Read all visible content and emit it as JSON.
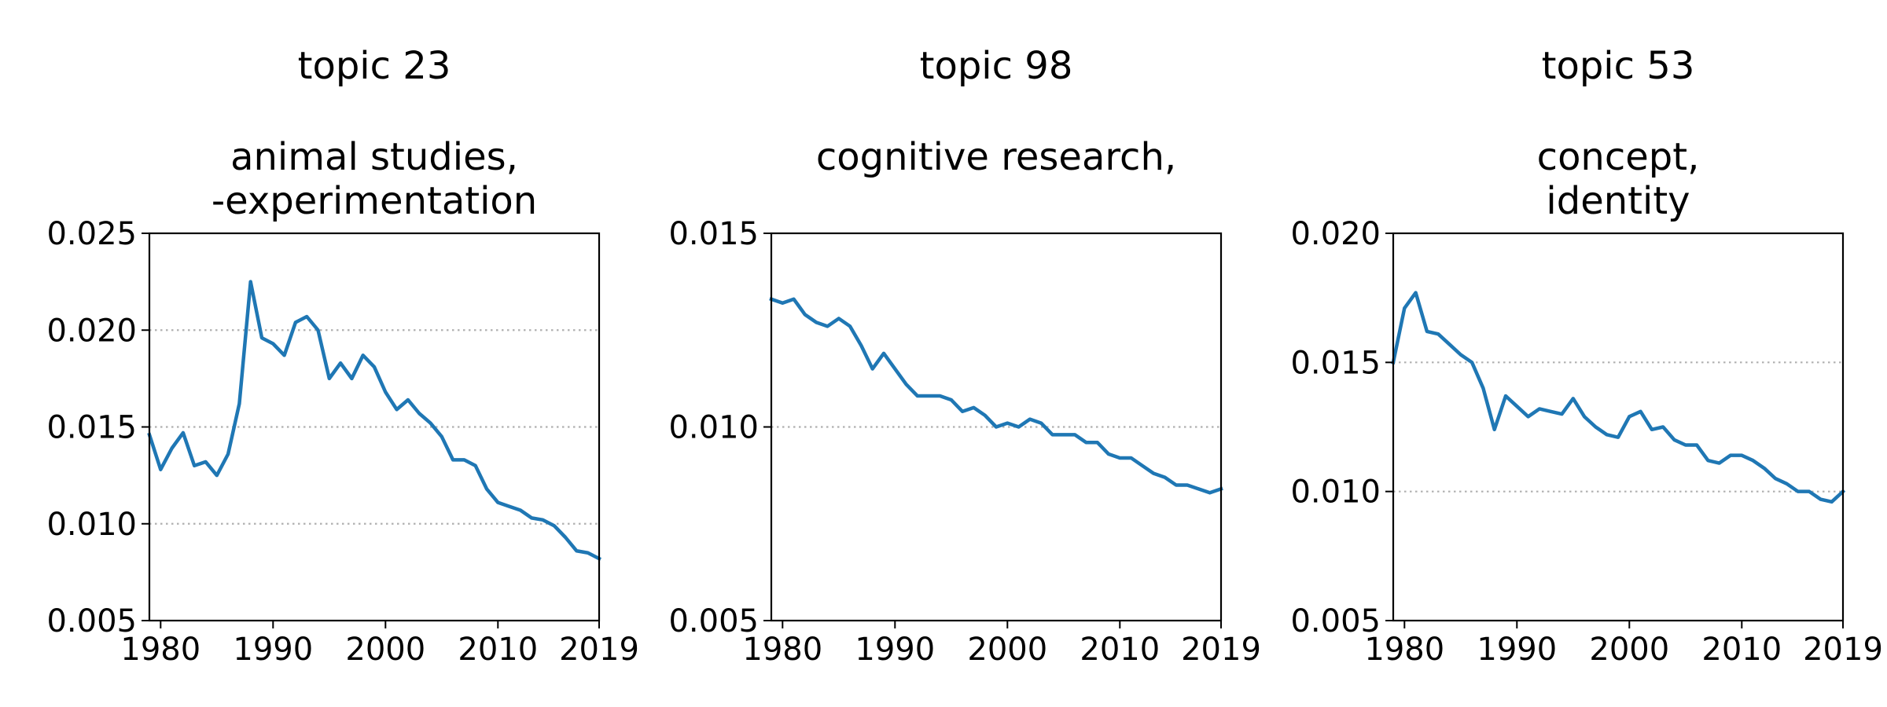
{
  "figure": {
    "line_color": "#1f77b4",
    "grid_color": "#b0b0b0",
    "grid_style": "dotted",
    "grid_axis": "y"
  },
  "chart_data": [
    {
      "type": "line",
      "title": "topic 23",
      "subtitle": "animal studies,\n-experimentation",
      "xlabel": "",
      "ylabel": "",
      "xlim": [
        1979,
        2019
      ],
      "ylim": [
        0.005,
        0.025
      ],
      "xticks": [
        1980,
        1990,
        2000,
        2010,
        2019
      ],
      "yticks": [
        "0.005",
        "0.010",
        "0.015",
        "0.020",
        "0.025"
      ],
      "grid_yvalues": [
        0.01,
        0.015,
        0.02
      ],
      "x": [
        1979,
        1980,
        1981,
        1982,
        1983,
        1984,
        1985,
        1986,
        1987,
        1988,
        1989,
        1990,
        1991,
        1992,
        1993,
        1994,
        1995,
        1996,
        1997,
        1998,
        1999,
        2000,
        2001,
        2002,
        2003,
        2004,
        2005,
        2006,
        2007,
        2008,
        2009,
        2010,
        2011,
        2012,
        2013,
        2014,
        2015,
        2016,
        2017,
        2018,
        2019
      ],
      "series": [
        {
          "values": [
            0.0146,
            0.0128,
            0.0139,
            0.0147,
            0.013,
            0.0132,
            0.0125,
            0.0136,
            0.0162,
            0.0225,
            0.0196,
            0.0193,
            0.0187,
            0.0204,
            0.0207,
            0.02,
            0.0175,
            0.0183,
            0.0175,
            0.0187,
            0.0181,
            0.0168,
            0.0159,
            0.0164,
            0.0157,
            0.0152,
            0.0145,
            0.0133,
            0.0133,
            0.013,
            0.0118,
            0.0111,
            0.0109,
            0.0107,
            0.0103,
            0.0102,
            0.0099,
            0.0093,
            0.0086,
            0.0085,
            0.0082
          ]
        }
      ]
    },
    {
      "type": "line",
      "title": "topic 98",
      "subtitle": "cognitive research,",
      "xlabel": "",
      "ylabel": "",
      "xlim": [
        1979,
        2019
      ],
      "ylim": [
        0.005,
        0.015
      ],
      "xticks": [
        1980,
        1990,
        2000,
        2010,
        2019
      ],
      "yticks": [
        "0.005",
        "0.010",
        "0.015"
      ],
      "grid_yvalues": [
        0.01
      ],
      "x": [
        1979,
        1980,
        1981,
        1982,
        1983,
        1984,
        1985,
        1986,
        1987,
        1988,
        1989,
        1990,
        1991,
        1992,
        1993,
        1994,
        1995,
        1996,
        1997,
        1998,
        1999,
        2000,
        2001,
        2002,
        2003,
        2004,
        2005,
        2006,
        2007,
        2008,
        2009,
        2010,
        2011,
        2012,
        2013,
        2014,
        2015,
        2016,
        2017,
        2018,
        2019
      ],
      "series": [
        {
          "values": [
            0.0133,
            0.0132,
            0.0133,
            0.0129,
            0.0127,
            0.0126,
            0.0128,
            0.0126,
            0.0121,
            0.0115,
            0.0119,
            0.0115,
            0.0111,
            0.0108,
            0.0108,
            0.0108,
            0.0107,
            0.0104,
            0.0105,
            0.0103,
            0.01,
            0.0101,
            0.01,
            0.0102,
            0.0101,
            0.0098,
            0.0098,
            0.0098,
            0.0096,
            0.0096,
            0.0093,
            0.0092,
            0.0092,
            0.009,
            0.0088,
            0.0087,
            0.0085,
            0.0085,
            0.0084,
            0.0083,
            0.0084
          ]
        }
      ]
    },
    {
      "type": "line",
      "title": "topic 53",
      "subtitle": "concept,\nidentity",
      "xlabel": "",
      "ylabel": "",
      "xlim": [
        1979,
        2019
      ],
      "ylim": [
        0.005,
        0.02
      ],
      "xticks": [
        1980,
        1990,
        2000,
        2010,
        2019
      ],
      "yticks": [
        "0.005",
        "0.010",
        "0.015",
        "0.020"
      ],
      "grid_yvalues": [
        0.01,
        0.015
      ],
      "x": [
        1979,
        1980,
        1981,
        1982,
        1983,
        1984,
        1985,
        1986,
        1987,
        1988,
        1989,
        1990,
        1991,
        1992,
        1993,
        1994,
        1995,
        1996,
        1997,
        1998,
        1999,
        2000,
        2001,
        2002,
        2003,
        2004,
        2005,
        2006,
        2007,
        2008,
        2009,
        2010,
        2011,
        2012,
        2013,
        2014,
        2015,
        2016,
        2017,
        2018,
        2019
      ],
      "series": [
        {
          "values": [
            0.015,
            0.0171,
            0.0177,
            0.0162,
            0.0161,
            0.0157,
            0.0153,
            0.015,
            0.014,
            0.0124,
            0.0137,
            0.0133,
            0.0129,
            0.0132,
            0.0131,
            0.013,
            0.0136,
            0.0129,
            0.0125,
            0.0122,
            0.0121,
            0.0129,
            0.0131,
            0.0124,
            0.0125,
            0.012,
            0.0118,
            0.0118,
            0.0112,
            0.0111,
            0.0114,
            0.0114,
            0.0112,
            0.0109,
            0.0105,
            0.0103,
            0.01,
            0.01,
            0.0097,
            0.0096,
            0.01
          ]
        }
      ]
    }
  ]
}
